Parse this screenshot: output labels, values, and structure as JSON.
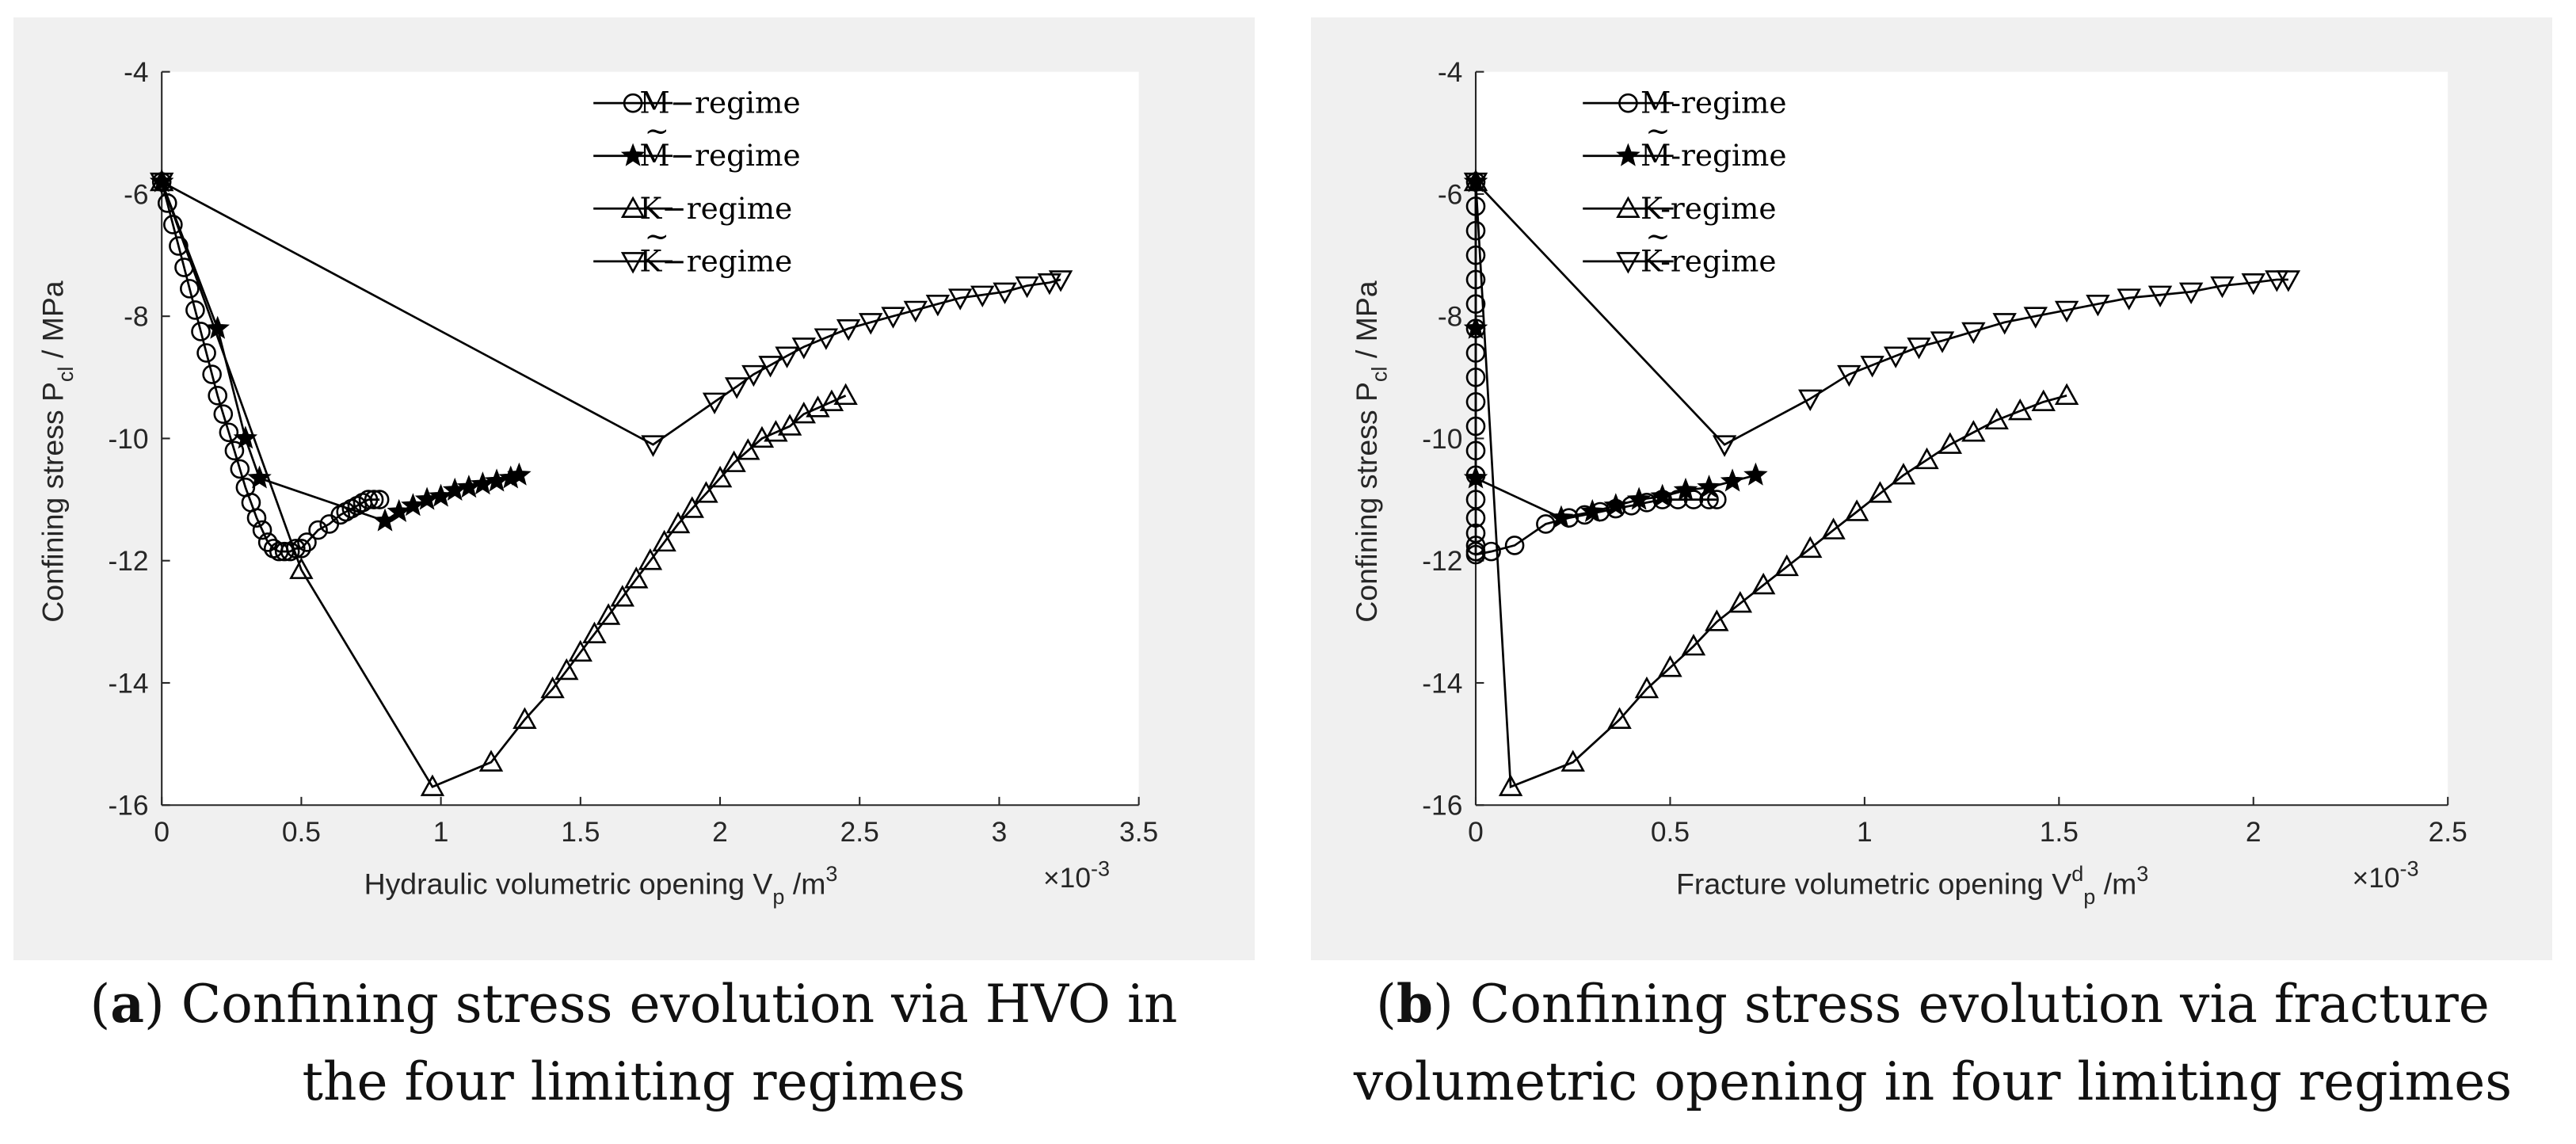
{
  "chart_data": [
    {
      "type": "line",
      "caption_letter": "a",
      "caption_text": "Confining stress evolution via HVO in",
      "caption_line2": "the four limiting regimes",
      "xlabel_text": "Hydraulic volumetric opening V",
      "xlabel_sub": "p",
      "xlabel_unit": " /m",
      "xlabel_sup": "3",
      "ylabel_text": "Confining stress P",
      "ylabel_sub": "cl",
      "ylabel_unit": " / MPa",
      "x_multiplier": "×10",
      "x_multiplier_exp": "-3",
      "xlim": [
        0,
        3.5
      ],
      "ylim": [
        -16,
        -4
      ],
      "x_ticks": [
        "0",
        "0.5",
        "1",
        "1.5",
        "2",
        "2.5",
        "3",
        "3.5"
      ],
      "y_ticks": [
        "-16",
        "-14",
        "-12",
        "-10",
        "-8",
        "-6",
        "-4"
      ],
      "legend_position": "top-center",
      "legend": [
        "M−regime",
        "M−regime",
        "K−regime",
        "K−regime"
      ],
      "legend_tilde": [
        false,
        true,
        false,
        true
      ],
      "series": [
        {
          "marker": "circle",
          "x": [
            0,
            0.02,
            0.04,
            0.06,
            0.08,
            0.1,
            0.12,
            0.14,
            0.16,
            0.18,
            0.2,
            0.22,
            0.24,
            0.26,
            0.28,
            0.3,
            0.32,
            0.34,
            0.36,
            0.38,
            0.4,
            0.42,
            0.44,
            0.46,
            0.48,
            0.5,
            0.52,
            0.56,
            0.6,
            0.64,
            0.66,
            0.68,
            0.7,
            0.72,
            0.74,
            0.76,
            0.78
          ],
          "y": [
            -5.8,
            -6.15,
            -6.5,
            -6.85,
            -7.2,
            -7.55,
            -7.9,
            -8.25,
            -8.6,
            -8.95,
            -9.3,
            -9.6,
            -9.9,
            -10.2,
            -10.5,
            -10.8,
            -11.05,
            -11.3,
            -11.5,
            -11.7,
            -11.8,
            -11.85,
            -11.85,
            -11.85,
            -11.8,
            -11.8,
            -11.7,
            -11.5,
            -11.4,
            -11.25,
            -11.2,
            -11.15,
            -11.1,
            -11.05,
            -11.0,
            -11.0,
            -11.0
          ]
        },
        {
          "marker": "star",
          "x": [
            0,
            0.2,
            0.3,
            0.35,
            0.8,
            0.85,
            0.9,
            0.95,
            1.0,
            1.05,
            1.1,
            1.15,
            1.2,
            1.25,
            1.28
          ],
          "y": [
            -5.8,
            -8.2,
            -10.0,
            -10.65,
            -11.35,
            -11.2,
            -11.1,
            -11.0,
            -10.95,
            -10.85,
            -10.8,
            -10.75,
            -10.7,
            -10.65,
            -10.6
          ]
        },
        {
          "marker": "triangle-up",
          "x": [
            0,
            0.5,
            0.97,
            1.18,
            1.3,
            1.4,
            1.45,
            1.5,
            1.55,
            1.6,
            1.65,
            1.7,
            1.75,
            1.8,
            1.85,
            1.9,
            1.95,
            2.0,
            2.05,
            2.1,
            2.15,
            2.2,
            2.25,
            2.3,
            2.35,
            2.4,
            2.45
          ],
          "y": [
            -5.8,
            -12.15,
            -15.7,
            -15.3,
            -14.6,
            -14.1,
            -13.8,
            -13.5,
            -13.2,
            -12.9,
            -12.6,
            -12.3,
            -12.0,
            -11.7,
            -11.4,
            -11.15,
            -10.9,
            -10.65,
            -10.4,
            -10.2,
            -10.0,
            -9.9,
            -9.8,
            -9.6,
            -9.5,
            -9.4,
            -9.3
          ]
        },
        {
          "marker": "triangle-down",
          "x": [
            0,
            1.76,
            1.98,
            2.06,
            2.12,
            2.18,
            2.24,
            2.3,
            2.38,
            2.46,
            2.54,
            2.62,
            2.7,
            2.78,
            2.86,
            2.94,
            3.02,
            3.1,
            3.18,
            3.22
          ],
          "y": [
            -5.8,
            -10.1,
            -9.4,
            -9.15,
            -8.95,
            -8.8,
            -8.65,
            -8.5,
            -8.35,
            -8.2,
            -8.1,
            -8.0,
            -7.9,
            -7.8,
            -7.7,
            -7.65,
            -7.6,
            -7.5,
            -7.45,
            -7.4
          ]
        }
      ]
    },
    {
      "type": "line",
      "caption_letter": "b",
      "caption_text": "Confining stress evolution via fracture",
      "caption_line2": "volumetric opening in four limiting regimes",
      "xlabel_text": "Fracture volumetric opening V",
      "xlabel_sub": "p",
      "xlabel_supd": "d",
      "xlabel_unit": " /m",
      "xlabel_sup": "3",
      "ylabel_text": "Confining stress P",
      "ylabel_sub": "cl",
      "ylabel_unit": " / MPa",
      "x_multiplier": "×10",
      "x_multiplier_exp": "-3",
      "xlim": [
        0,
        2.5
      ],
      "ylim": [
        -16,
        -4
      ],
      "x_ticks": [
        "0",
        "0.5",
        "1",
        "1.5",
        "2",
        "2.5"
      ],
      "y_ticks": [
        "-16",
        "-14",
        "-12",
        "-10",
        "-8",
        "-6",
        "-4"
      ],
      "legend_position": "top-left",
      "legend": [
        "M-regime",
        "M-regime",
        "K-regime",
        "K-regime"
      ],
      "legend_tilde": [
        false,
        true,
        false,
        true
      ],
      "series": [
        {
          "marker": "circle",
          "x": [
            0,
            0,
            0,
            0,
            0,
            0,
            0,
            0,
            0,
            0,
            0,
            0,
            0,
            0,
            0,
            0,
            0,
            0,
            0,
            0.04,
            0.1,
            0.18,
            0.24,
            0.28,
            0.32,
            0.36,
            0.4,
            0.44,
            0.48,
            0.52,
            0.56,
            0.6,
            0.62
          ],
          "y": [
            -5.8,
            -6.2,
            -6.6,
            -7.0,
            -7.4,
            -7.8,
            -8.2,
            -8.6,
            -9.0,
            -9.4,
            -9.8,
            -10.2,
            -10.6,
            -11.0,
            -11.3,
            -11.55,
            -11.75,
            -11.85,
            -11.9,
            -11.85,
            -11.75,
            -11.4,
            -11.3,
            -11.25,
            -11.2,
            -11.15,
            -11.1,
            -11.05,
            -11.0,
            -11.0,
            -11.0,
            -11.0,
            -11.0
          ]
        },
        {
          "marker": "star",
          "x": [
            0,
            0,
            0,
            0.22,
            0.3,
            0.36,
            0.42,
            0.48,
            0.54,
            0.6,
            0.66,
            0.72
          ],
          "y": [
            -5.8,
            -8.2,
            -10.65,
            -11.3,
            -11.2,
            -11.1,
            -11.0,
            -10.95,
            -10.85,
            -10.8,
            -10.7,
            -10.6
          ]
        },
        {
          "marker": "triangle-up",
          "x": [
            0,
            0.09,
            0.25,
            0.37,
            0.44,
            0.5,
            0.56,
            0.62,
            0.68,
            0.74,
            0.8,
            0.86,
            0.92,
            0.98,
            1.04,
            1.1,
            1.16,
            1.22,
            1.28,
            1.34,
            1.4,
            1.46,
            1.52
          ],
          "y": [
            -5.8,
            -15.7,
            -15.3,
            -14.6,
            -14.1,
            -13.75,
            -13.4,
            -13.0,
            -12.7,
            -12.4,
            -12.1,
            -11.8,
            -11.5,
            -11.2,
            -10.9,
            -10.6,
            -10.35,
            -10.1,
            -9.9,
            -9.7,
            -9.55,
            -9.4,
            -9.3
          ]
        },
        {
          "marker": "triangle-down",
          "x": [
            0,
            0.64,
            0.86,
            0.96,
            1.02,
            1.08,
            1.14,
            1.2,
            1.28,
            1.36,
            1.44,
            1.52,
            1.6,
            1.68,
            1.76,
            1.84,
            1.92,
            2.0,
            2.06,
            2.09
          ],
          "y": [
            -5.8,
            -10.1,
            -9.35,
            -8.95,
            -8.8,
            -8.65,
            -8.5,
            -8.4,
            -8.25,
            -8.1,
            -8.0,
            -7.9,
            -7.8,
            -7.7,
            -7.65,
            -7.6,
            -7.5,
            -7.45,
            -7.4,
            -7.4
          ]
        }
      ]
    }
  ]
}
